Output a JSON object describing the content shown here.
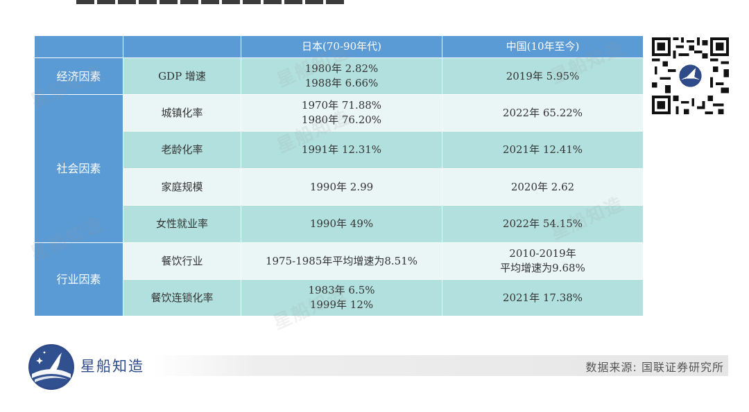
{
  "header": {
    "col_japan": "日本(70-90年代)",
    "col_china": "中国(10年至今)"
  },
  "categories": {
    "economic": "经济因素",
    "social": "社会因素",
    "industry": "行业因素"
  },
  "rows": [
    {
      "indicator": "GDP 增速",
      "japan": [
        "1980年 2.82%",
        "1988年 6.66%"
      ],
      "china": [
        "2019年 5.95%"
      ]
    },
    {
      "indicator": "城镇化率",
      "japan": [
        "1970年 71.88%",
        "1980年 76.20%"
      ],
      "china": [
        "2022年 65.22%"
      ]
    },
    {
      "indicator": "老龄化率",
      "japan": [
        "1991年 12.31%"
      ],
      "china": [
        "2021年 12.41%"
      ]
    },
    {
      "indicator": "家庭规模",
      "japan": [
        "1990年 2.99"
      ],
      "china": [
        "2020年 2.62"
      ]
    },
    {
      "indicator": "女性就业率",
      "japan": [
        "1990年 49%"
      ],
      "china": [
        "2022年 54.15%"
      ]
    },
    {
      "indicator": "餐饮行业",
      "japan": [
        "1975-1985年平均增速为8.51%"
      ],
      "china": [
        "2010-2019年",
        "平均增速为9.68%"
      ]
    },
    {
      "indicator": "餐饮连锁化率",
      "japan": [
        "1983年 6.5%",
        "1999年 12%"
      ],
      "china": [
        "2021年 17.38%"
      ]
    }
  ],
  "watermark": "星船知造",
  "footer": {
    "brand": "星船知造",
    "source": "数据来源: 国联证券研究所"
  },
  "colors": {
    "header_blue": "#5b9bd5",
    "teal_row": "#b2e0de",
    "light_row": "#e9f6f5",
    "brand_navy": "#2f4b8a"
  }
}
